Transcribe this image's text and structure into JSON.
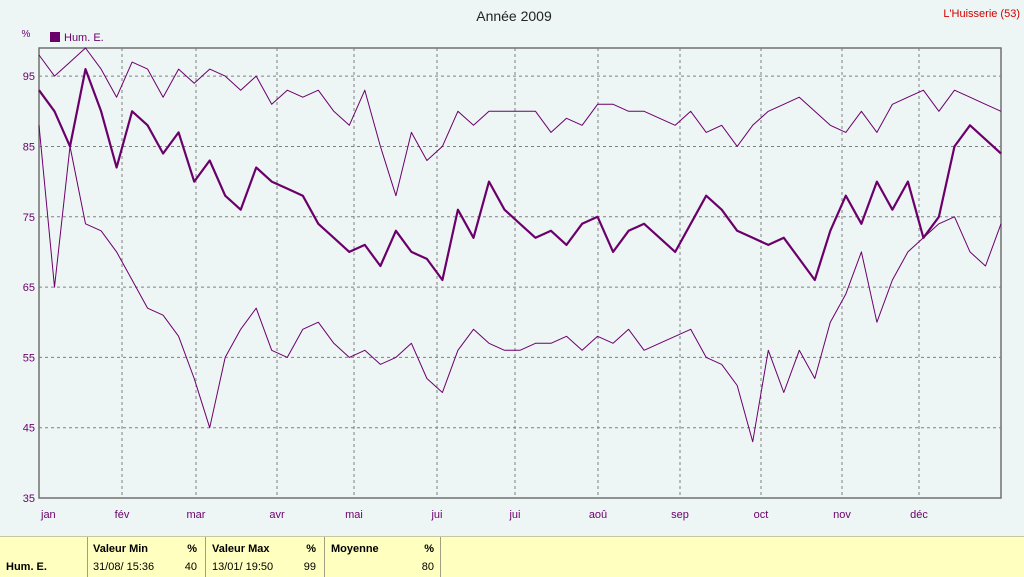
{
  "station": "L'Huisserie (53)",
  "colors": {
    "series": "#6b006b",
    "grid": "#808080",
    "station": "#d00000",
    "background": "#eef5f5",
    "stats_bg": "#ffffc0"
  },
  "stats": {
    "series_name": "Hum. E.",
    "min": {
      "label": "Valeur Min",
      "unit": "%",
      "date": "31/08/ 15:36",
      "value": "40"
    },
    "max": {
      "label": "Valeur Max",
      "unit": "%",
      "date": "13/01/ 19:50",
      "value": "99"
    },
    "mean": {
      "label": "Moyenne",
      "unit": "%",
      "value": "80"
    }
  },
  "chart_data": {
    "type": "line",
    "title": "Année 2009",
    "ylabel": "%",
    "ylim": [
      35,
      99
    ],
    "yticks": [
      35,
      45,
      55,
      65,
      75,
      85,
      95
    ],
    "grid": true,
    "legend": "top-left",
    "xtick_labels": [
      "jan",
      "fév",
      "mar",
      "avr",
      "mai",
      "jui",
      "jui",
      "aoû",
      "sep",
      "oct",
      "nov",
      "déc"
    ],
    "series": [
      {
        "name": "Hum. E.",
        "role": "max",
        "values": [
          98,
          95,
          97,
          99,
          96,
          92,
          97,
          96,
          92,
          96,
          94,
          96,
          95,
          93,
          95,
          91,
          93,
          92,
          93,
          90,
          88,
          93,
          85,
          78,
          87,
          83,
          85,
          90,
          88,
          90,
          90,
          90,
          90,
          87,
          89,
          88,
          91,
          91,
          90,
          90,
          89,
          88,
          90,
          87,
          88,
          85,
          88,
          90,
          91,
          92,
          90,
          88,
          87,
          90,
          87,
          91,
          92,
          93,
          90,
          93,
          92,
          91,
          90
        ]
      },
      {
        "name": "Hum. E.",
        "role": "mean",
        "values": [
          93,
          90,
          85,
          96,
          90,
          82,
          90,
          88,
          84,
          87,
          80,
          83,
          78,
          76,
          82,
          80,
          79,
          78,
          74,
          72,
          70,
          71,
          68,
          73,
          70,
          69,
          66,
          76,
          72,
          80,
          76,
          74,
          72,
          73,
          71,
          74,
          75,
          70,
          73,
          74,
          72,
          70,
          74,
          78,
          76,
          73,
          72,
          71,
          72,
          69,
          66,
          73,
          78,
          74,
          80,
          76,
          80,
          72,
          75,
          85,
          88,
          86,
          84
        ]
      },
      {
        "name": "Hum. E.",
        "role": "min",
        "values": [
          88,
          65,
          85,
          74,
          73,
          70,
          66,
          62,
          61,
          58,
          52,
          45,
          55,
          59,
          62,
          56,
          55,
          59,
          60,
          57,
          55,
          56,
          54,
          55,
          57,
          52,
          50,
          56,
          59,
          57,
          56,
          56,
          57,
          57,
          58,
          56,
          58,
          57,
          59,
          56,
          57,
          58,
          59,
          55,
          54,
          51,
          43,
          56,
          50,
          56,
          52,
          60,
          64,
          70,
          60,
          66,
          70,
          72,
          74,
          75,
          70,
          68,
          74
        ]
      }
    ]
  }
}
